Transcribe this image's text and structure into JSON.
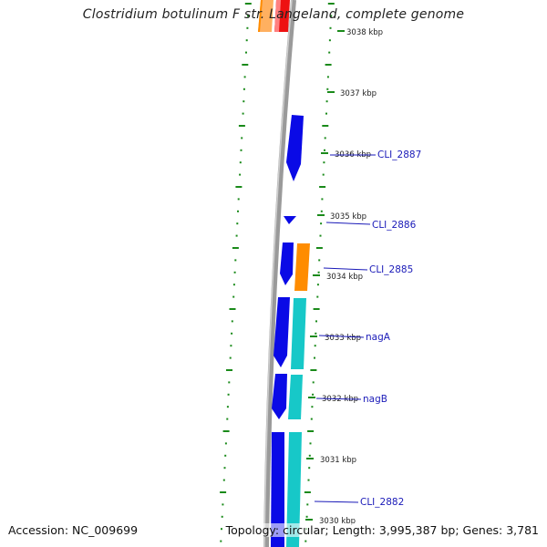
{
  "title": "Clostridium botulinum F str. Langeland, complete genome",
  "footer": {
    "accession": "Accession: NC_009699",
    "summary": "Topology: circular; Length: 3,995,387 bp; Genes: 3,781"
  },
  "colors": {
    "backbone": "#8c8c8c",
    "tick_marks": "#1a8a1a",
    "gene_forward": "#0a0ae6",
    "gene_reverse": "#17c8c8",
    "gene_other": "#ff8c00",
    "gene_red": "#ee1111",
    "label_line": "#1a1ab8"
  },
  "ticks": [
    {
      "label": "3038 kbp"
    },
    {
      "label": "3037 kbp"
    },
    {
      "label": "3036 kbp"
    },
    {
      "label": "3035 kbp"
    },
    {
      "label": "3034 kbp"
    },
    {
      "label": "3033 kbp"
    },
    {
      "label": "3032 kbp"
    },
    {
      "label": "3031 kbp"
    },
    {
      "label": "3030 kbp"
    }
  ],
  "genes": [
    {
      "name": "CLI_2887",
      "strand": "forward"
    },
    {
      "name": "CLI_2886",
      "strand": "forward"
    },
    {
      "name": "CLI_2885",
      "strand": "forward"
    },
    {
      "name": "nagA",
      "strand": "forward"
    },
    {
      "name": "nagB",
      "strand": "forward"
    },
    {
      "name": "CLI_2882",
      "strand": "forward"
    }
  ]
}
